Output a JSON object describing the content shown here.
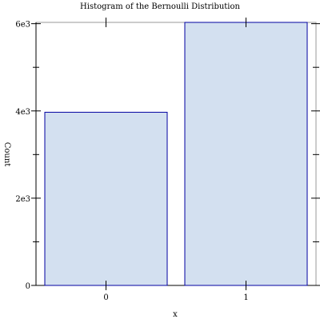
{
  "chart_data": {
    "type": "bar",
    "title": "Histogram of the Bernoulli Distribution",
    "xlabel": "x",
    "ylabel": "Count",
    "categories": [
      "0",
      "1"
    ],
    "values": [
      3970,
      6030
    ],
    "ylim": [
      0,
      6030
    ],
    "y_ticks": [
      {
        "value": 0,
        "label": "0"
      },
      {
        "value": 2000,
        "label": "2e3"
      },
      {
        "value": 4000,
        "label": "4e3"
      },
      {
        "value": 6000,
        "label": "6e3"
      }
    ],
    "y_minor_ticks": [
      1000,
      3000,
      5000
    ],
    "grid": false,
    "colors": {
      "bar_fill": "#d3e0f0",
      "bar_stroke": "#0000a0",
      "axis": "#000000",
      "frame": "#999999"
    }
  }
}
